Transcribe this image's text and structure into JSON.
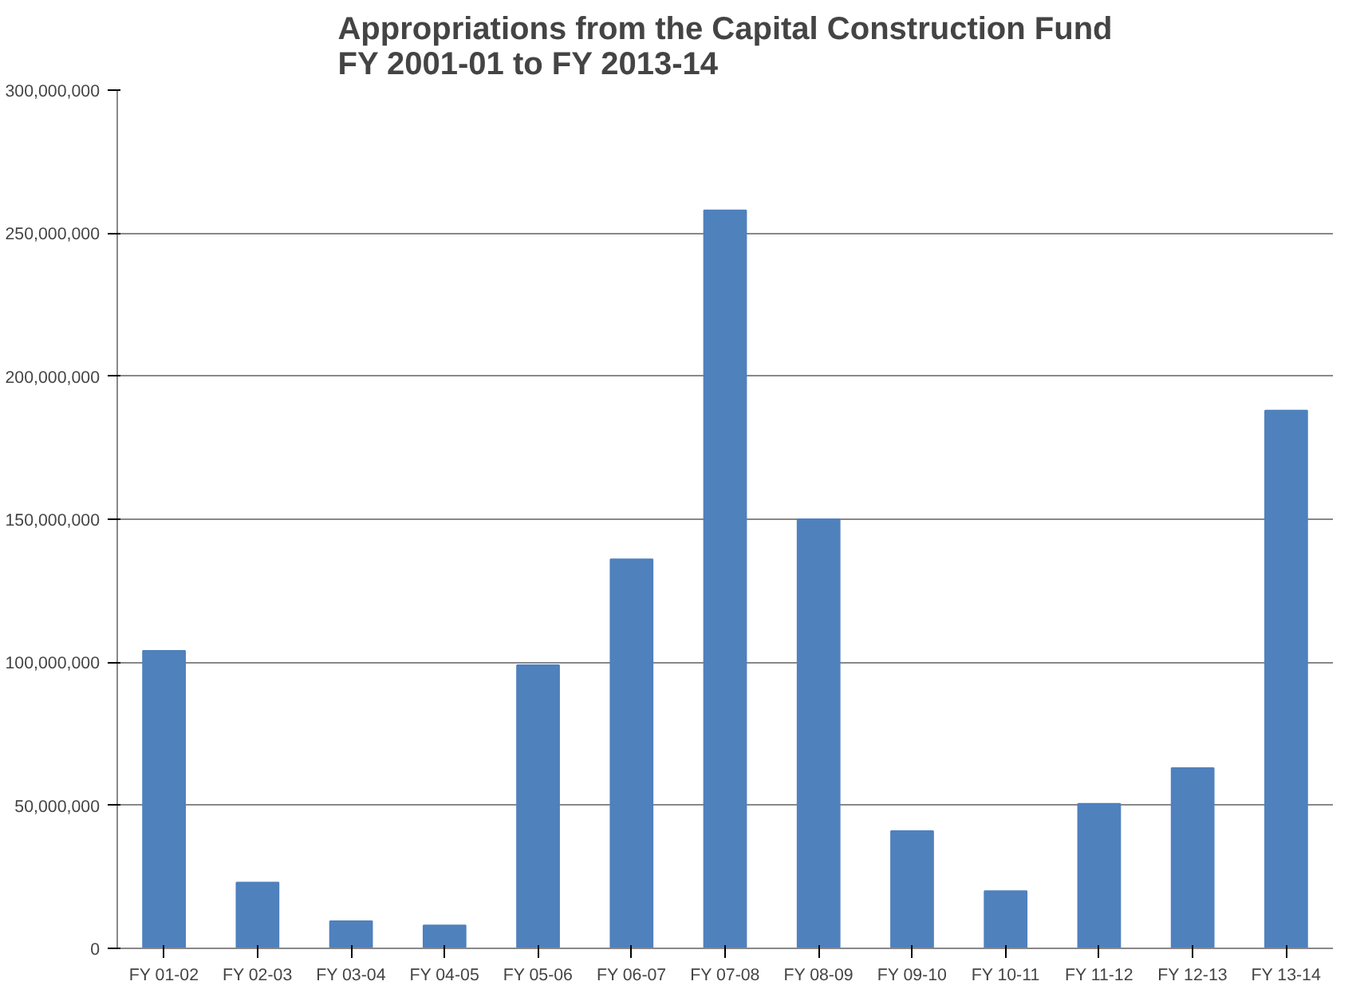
{
  "chart_data": {
    "type": "bar",
    "title": "Appropriations from the Capital Construction Fund\nFY 2001-01 to FY 2013-14",
    "categories": [
      "FY 01-02",
      "FY 02-03",
      "FY 03-04",
      "FY 04-05",
      "FY 05-06",
      "FY 06-07",
      "FY 07-08",
      "FY 08-09",
      "FY 09-10",
      "FY 10-11",
      "FY 11-12",
      "FY 12-13",
      "FY 13-14"
    ],
    "values": [
      104000000,
      23000000,
      9500000,
      8000000,
      99000000,
      136000000,
      258000000,
      150000000,
      41000000,
      20000000,
      50500000,
      63000000,
      188000000
    ],
    "color": "#4f81bd",
    "ylim": [
      0,
      300000000
    ],
    "yticks": [
      {
        "value": 0,
        "label": "0"
      },
      {
        "value": 50000000,
        "label": "50,000,000"
      },
      {
        "value": 100000000,
        "label": "100,000,000"
      },
      {
        "value": 150000000,
        "label": "150,000,000"
      },
      {
        "value": 200000000,
        "label": "200,000,000"
      },
      {
        "value": 250000000,
        "label": "250,000,000"
      },
      {
        "value": 300000000,
        "label": "300,000,000"
      }
    ],
    "grid": "y"
  }
}
